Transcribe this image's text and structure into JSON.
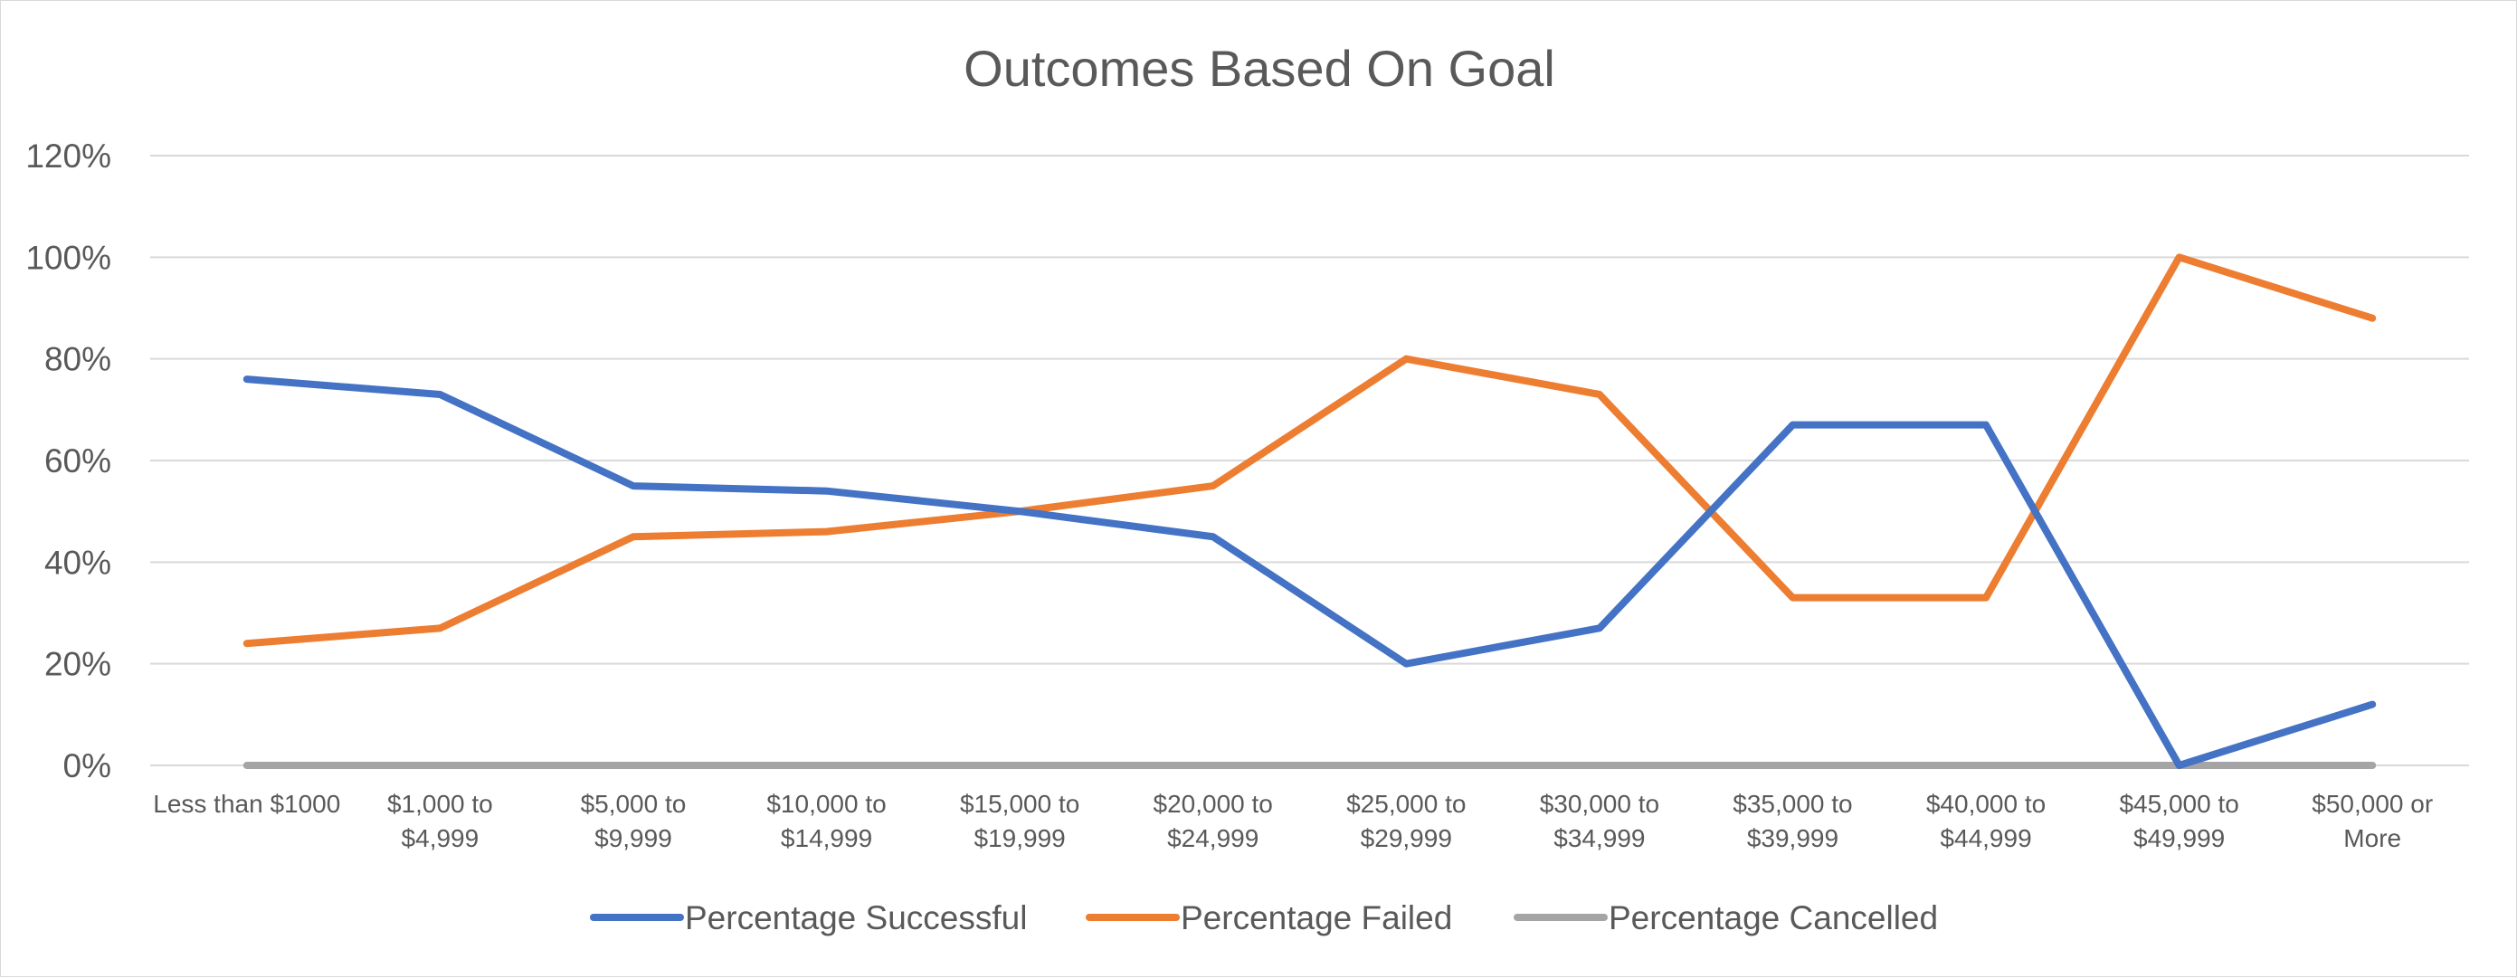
{
  "chart_data": {
    "type": "line",
    "title": "Outcomes Based On Goal",
    "xlabel": "",
    "ylabel": "",
    "categories": [
      [
        "Less than $1000"
      ],
      [
        "$1,000 to",
        "$4,999"
      ],
      [
        "$5,000 to",
        "$9,999"
      ],
      [
        "$10,000 to",
        "$14,999"
      ],
      [
        "$15,000 to",
        "$19,999"
      ],
      [
        "$20,000 to",
        "$24,999"
      ],
      [
        "$25,000 to",
        "$29,999"
      ],
      [
        "$30,000 to",
        "$34,999"
      ],
      [
        "$35,000 to",
        "$39,999"
      ],
      [
        "$40,000 to",
        "$44,999"
      ],
      [
        "$45,000 to",
        "$49,999"
      ],
      [
        "$50,000 or",
        "More"
      ]
    ],
    "ylim": [
      0,
      1.2
    ],
    "yticks": [
      0,
      0.2,
      0.4,
      0.6,
      0.8,
      1.0,
      1.2
    ],
    "ytick_labels": [
      "0%",
      "20%",
      "40%",
      "60%",
      "80%",
      "100%",
      "120%"
    ],
    "grid": true,
    "legend_position": "bottom",
    "series": [
      {
        "name": "Percentage Successful",
        "color": "#4472c4",
        "values": [
          0.76,
          0.73,
          0.55,
          0.54,
          0.5,
          0.45,
          0.2,
          0.27,
          0.67,
          0.67,
          0.0,
          0.12
        ]
      },
      {
        "name": "Percentage Failed",
        "color": "#ed7d31",
        "values": [
          0.24,
          0.27,
          0.45,
          0.46,
          0.5,
          0.55,
          0.8,
          0.73,
          0.33,
          0.33,
          1.0,
          0.88
        ]
      },
      {
        "name": "Percentage Cancelled",
        "color": "#a5a5a5",
        "values": [
          0,
          0,
          0,
          0,
          0,
          0,
          0,
          0,
          0,
          0,
          0,
          0
        ]
      }
    ]
  }
}
